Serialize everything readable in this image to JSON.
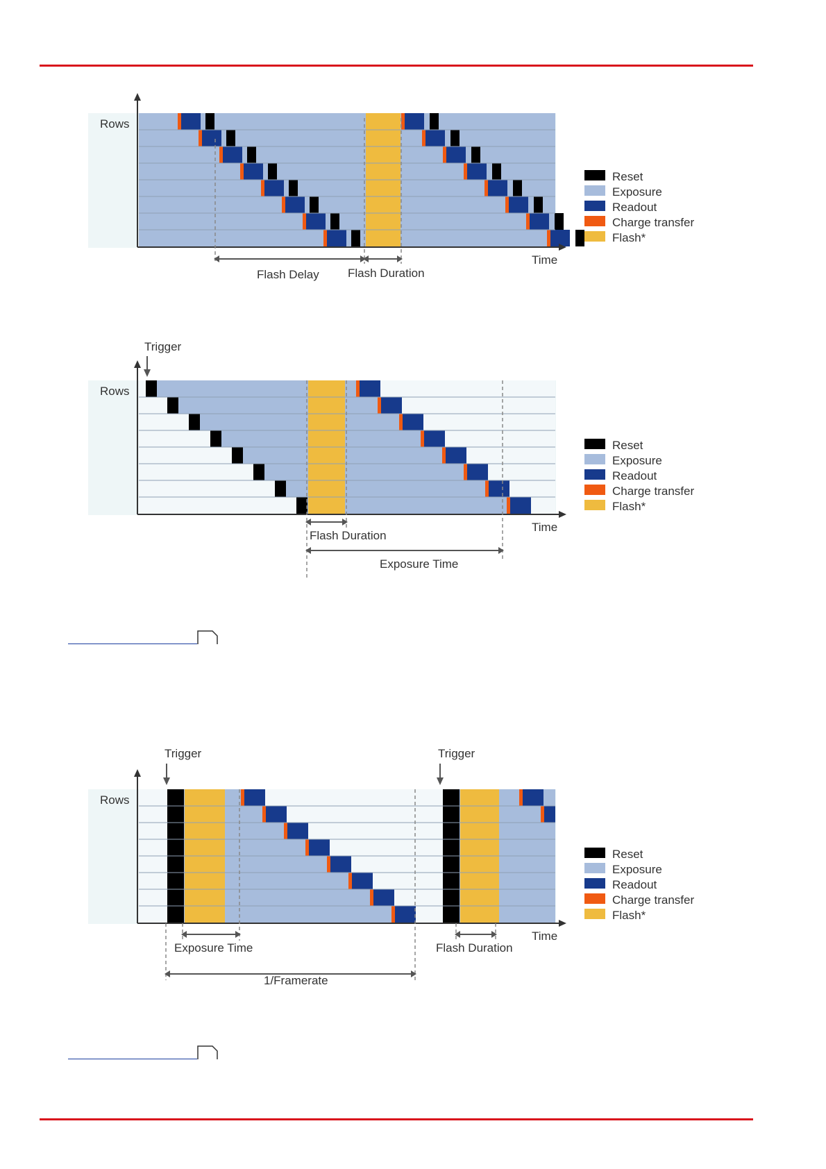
{
  "colors": {
    "reset": "#000000",
    "exposure": "#a7bcdc",
    "readout": "#173a8c",
    "charge": "#f05a12",
    "flash": "#efbb3f",
    "background": "#eef6f7",
    "rule": "#d9141c",
    "axis": "#333333"
  },
  "legend": {
    "reset": "Reset",
    "exposure": "Exposure",
    "readout": "Readout",
    "charge": "Charge transfer",
    "flash": "Flash*"
  },
  "diagrams": [
    {
      "rows_label": "Rows",
      "time_label": "Time",
      "dim1": "Flash Delay",
      "dim2": "Flash Duration"
    },
    {
      "rows_label": "Rows",
      "time_label": "Time",
      "trigger": "Trigger",
      "dim1": "Flash Duration",
      "dim2": "Exposure Time"
    },
    {
      "rows_label": "Rows",
      "time_label": "Time",
      "trigger1": "Trigger",
      "trigger2": "Trigger",
      "dim1": "Exposure Time",
      "dim2": "Flash Duration",
      "dim3": "1/Framerate"
    }
  ]
}
